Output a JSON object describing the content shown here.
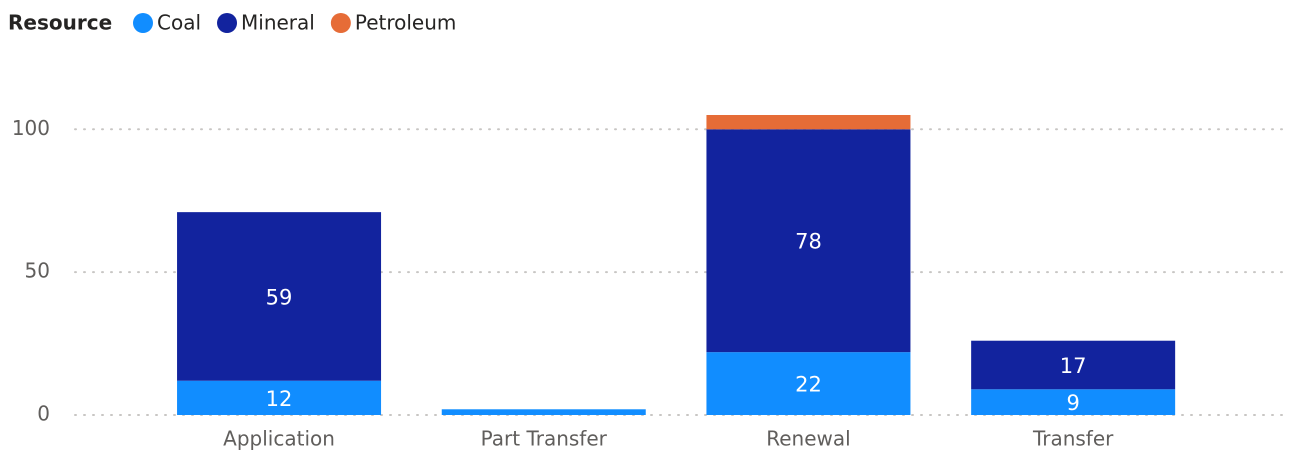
{
  "chart_data": {
    "type": "stacked_bar",
    "legend_title": "Resource",
    "categories": [
      "Application",
      "Part Transfer",
      "Renewal",
      "Transfer"
    ],
    "series": [
      {
        "name": "Coal",
        "color": "#118dff",
        "values": [
          12,
          2,
          22,
          9
        ],
        "value_labels": [
          "12",
          null,
          "22",
          "9"
        ]
      },
      {
        "name": "Mineral",
        "color": "#12239e",
        "values": [
          59,
          null,
          78,
          17
        ],
        "value_labels": [
          "59",
          null,
          "78",
          "17"
        ]
      },
      {
        "name": "Petroleum",
        "color": "#e66c37",
        "values": [
          null,
          null,
          5,
          null
        ],
        "value_labels": [
          null,
          null,
          null,
          null
        ]
      }
    ],
    "ylim": [
      0,
      105
    ],
    "yticks": [
      0,
      50,
      100
    ],
    "grid": true,
    "legend": "top-left"
  }
}
